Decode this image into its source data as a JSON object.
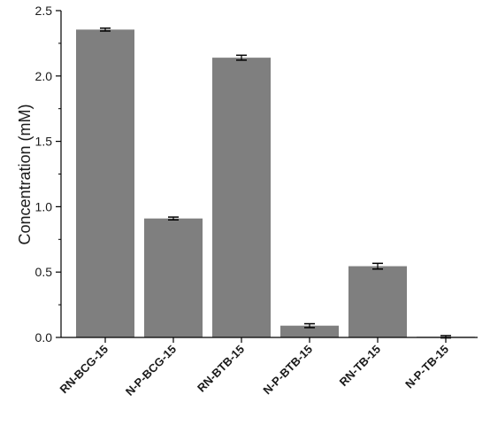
{
  "chart_data": {
    "type": "bar",
    "title": "",
    "xlabel": "",
    "ylabel": "Concentration (mM)",
    "ylim": [
      0,
      2.5
    ],
    "yticks": [
      0.0,
      0.5,
      1.0,
      1.5,
      2.0,
      2.5
    ],
    "ytick_labels": [
      "0.0",
      "0.5",
      "1.0",
      "1.5",
      "2.0",
      "2.5"
    ],
    "categories": [
      "RN-BCG-15",
      "N-P-BCG-15",
      "RN-BTB-15",
      "N-P-BTB-15",
      "RN-TB-15",
      "N-P-TB-15"
    ],
    "values": [
      2.355,
      0.91,
      2.14,
      0.09,
      0.545,
      0.005
    ],
    "errors": [
      0.004,
      0.004,
      0.012,
      0.008,
      0.015,
      0.002
    ],
    "grid": false,
    "colors": {
      "bar": "#7f7f7f",
      "axis": "#000000",
      "error_bar": "#000000"
    }
  }
}
